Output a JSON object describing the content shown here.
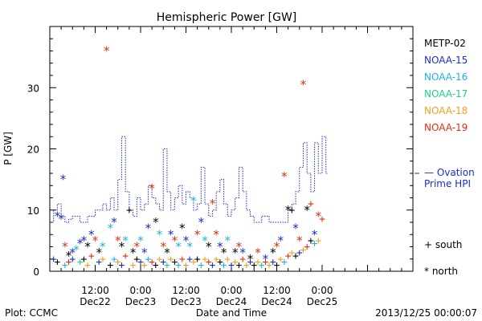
{
  "chart_data": {
    "type": "scatter",
    "title": "Hemispheric Power [GW]",
    "ylabel": "P [GW]",
    "xlabel": "Date and Time",
    "ylim": [
      0,
      40
    ],
    "yticks": [
      0,
      10,
      20,
      30
    ],
    "xlim": [
      0,
      96
    ],
    "xticks": [
      {
        "x": 12,
        "top": "12:00",
        "bottom": "Dec22"
      },
      {
        "x": 24,
        "top": "0:00",
        "bottom": "Dec23"
      },
      {
        "x": 36,
        "top": "12:00",
        "bottom": "Dec23"
      },
      {
        "x": 48,
        "top": "0:00",
        "bottom": "Dec24"
      },
      {
        "x": 60,
        "top": "12:00",
        "bottom": "Dec24"
      },
      {
        "x": 72,
        "top": "0:00",
        "bottom": "Dec25"
      }
    ],
    "legend": [
      {
        "name": "METP-02",
        "color": "#000000"
      },
      {
        "name": "NOAA-15",
        "color": "#1a2dc8"
      },
      {
        "name": "NOAA-16",
        "color": "#1fb4d8"
      },
      {
        "name": "NOAA-17",
        "color": "#20d080"
      },
      {
        "name": "NOAA-18",
        "color": "#f0a020"
      },
      {
        "name": "NOAA-19",
        "color": "#e03010"
      }
    ],
    "ovation": {
      "label_line1": "— Ovation",
      "label_line2": "Prime HPI",
      "color": "#1a2dc8",
      "steps": [
        [
          0,
          8
        ],
        [
          1,
          10
        ],
        [
          2,
          11
        ],
        [
          3,
          9
        ],
        [
          4,
          8
        ],
        [
          5,
          8.5
        ],
        [
          6,
          9
        ],
        [
          8,
          8
        ],
        [
          10,
          9
        ],
        [
          12,
          10
        ],
        [
          13,
          10
        ],
        [
          14,
          11
        ],
        [
          15,
          10
        ],
        [
          16,
          12
        ],
        [
          17,
          10
        ],
        [
          18,
          15
        ],
        [
          19,
          22
        ],
        [
          20,
          13
        ],
        [
          21,
          10
        ],
        [
          22,
          9
        ],
        [
          23,
          12
        ],
        [
          24,
          10
        ],
        [
          25,
          11
        ],
        [
          26,
          14
        ],
        [
          27,
          12
        ],
        [
          28,
          11
        ],
        [
          29,
          10
        ],
        [
          30,
          20
        ],
        [
          31,
          13
        ],
        [
          32,
          10
        ],
        [
          33,
          12
        ],
        [
          34,
          14
        ],
        [
          35,
          11
        ],
        [
          36,
          13
        ],
        [
          37,
          12
        ],
        [
          38,
          10
        ],
        [
          39,
          11
        ],
        [
          40,
          17
        ],
        [
          41,
          11
        ],
        [
          42,
          9
        ],
        [
          43,
          10
        ],
        [
          44,
          13
        ],
        [
          45,
          15
        ],
        [
          46,
          11
        ],
        [
          47,
          9
        ],
        [
          48,
          10
        ],
        [
          49,
          12
        ],
        [
          50,
          17
        ],
        [
          51,
          13
        ],
        [
          52,
          10
        ],
        [
          53,
          9
        ],
        [
          54,
          8
        ],
        [
          56,
          9
        ],
        [
          58,
          8
        ],
        [
          60,
          8
        ],
        [
          61,
          8
        ],
        [
          62,
          8
        ],
        [
          63,
          10
        ],
        [
          64,
          11
        ],
        [
          65,
          13
        ],
        [
          66,
          17
        ],
        [
          67,
          21
        ],
        [
          68,
          16
        ],
        [
          69,
          13
        ],
        [
          70,
          21
        ],
        [
          71,
          16
        ],
        [
          72,
          22
        ],
        [
          73,
          16
        ]
      ]
    },
    "markers": {
      "south_label": "+ south",
      "north_label": "* north"
    },
    "points": [
      {
        "x": 3.5,
        "y": 15,
        "c": 1,
        "s": "n"
      },
      {
        "x": 15,
        "y": 36,
        "c": 5,
        "s": "n"
      },
      {
        "x": 27,
        "y": 13.5,
        "c": 5,
        "s": "n"
      },
      {
        "x": 38,
        "y": 11.5,
        "c": 2,
        "s": "n"
      },
      {
        "x": 43,
        "y": 11,
        "c": 5,
        "s": "n"
      },
      {
        "x": 62,
        "y": 15.5,
        "c": 5,
        "s": "n"
      },
      {
        "x": 67,
        "y": 30.5,
        "c": 5,
        "s": "n"
      },
      {
        "x": 63,
        "y": 10,
        "c": 0,
        "s": "n"
      },
      {
        "x": 68,
        "y": 10,
        "c": 0,
        "s": "n"
      },
      {
        "x": 64,
        "y": 10,
        "c": 0,
        "s": "p"
      },
      {
        "x": 69,
        "y": 11,
        "c": 5,
        "s": "p"
      },
      {
        "x": 21,
        "y": 10,
        "c": 0,
        "s": "p"
      },
      {
        "x": 2,
        "y": 9,
        "c": 1,
        "s": "n"
      },
      {
        "x": 3,
        "y": 8.5,
        "c": 1,
        "s": "n"
      },
      {
        "x": 4,
        "y": 4,
        "c": 5,
        "s": "n"
      },
      {
        "x": 5,
        "y": 2.5,
        "c": 0,
        "s": "n"
      },
      {
        "x": 6,
        "y": 3,
        "c": 1,
        "s": "n"
      },
      {
        "x": 7,
        "y": 3.5,
        "c": 2,
        "s": "n"
      },
      {
        "x": 8,
        "y": 4.5,
        "c": 1,
        "s": "n"
      },
      {
        "x": 9,
        "y": 5,
        "c": 1,
        "s": "n"
      },
      {
        "x": 10,
        "y": 4,
        "c": 0,
        "s": "n"
      },
      {
        "x": 11,
        "y": 6,
        "c": 1,
        "s": "n"
      },
      {
        "x": 12,
        "y": 5,
        "c": 5,
        "s": "n"
      },
      {
        "x": 13,
        "y": 3,
        "c": 0,
        "s": "n"
      },
      {
        "x": 14,
        "y": 4,
        "c": 2,
        "s": "n"
      },
      {
        "x": 16,
        "y": 7,
        "c": 2,
        "s": "n"
      },
      {
        "x": 17,
        "y": 8,
        "c": 1,
        "s": "n"
      },
      {
        "x": 18,
        "y": 5,
        "c": 5,
        "s": "n"
      },
      {
        "x": 19,
        "y": 4,
        "c": 0,
        "s": "n"
      },
      {
        "x": 20,
        "y": 5,
        "c": 2,
        "s": "n"
      },
      {
        "x": 22,
        "y": 3,
        "c": 0,
        "s": "n"
      },
      {
        "x": 23,
        "y": 4,
        "c": 5,
        "s": "n"
      },
      {
        "x": 24,
        "y": 5,
        "c": 2,
        "s": "n"
      },
      {
        "x": 25,
        "y": 3,
        "c": 1,
        "s": "n"
      },
      {
        "x": 26,
        "y": 7,
        "c": 1,
        "s": "n"
      },
      {
        "x": 28,
        "y": 8,
        "c": 0,
        "s": "n"
      },
      {
        "x": 29,
        "y": 6,
        "c": 2,
        "s": "n"
      },
      {
        "x": 30,
        "y": 4,
        "c": 5,
        "s": "n"
      },
      {
        "x": 31,
        "y": 3,
        "c": 0,
        "s": "n"
      },
      {
        "x": 32,
        "y": 6,
        "c": 1,
        "s": "n"
      },
      {
        "x": 33,
        "y": 5,
        "c": 5,
        "s": "n"
      },
      {
        "x": 34,
        "y": 4,
        "c": 2,
        "s": "n"
      },
      {
        "x": 35,
        "y": 7,
        "c": 0,
        "s": "n"
      },
      {
        "x": 36,
        "y": 5,
        "c": 1,
        "s": "n"
      },
      {
        "x": 37,
        "y": 4,
        "c": 2,
        "s": "n"
      },
      {
        "x": 39,
        "y": 6,
        "c": 5,
        "s": "n"
      },
      {
        "x": 40,
        "y": 8,
        "c": 1,
        "s": "n"
      },
      {
        "x": 41,
        "y": 5,
        "c": 2,
        "s": "n"
      },
      {
        "x": 42,
        "y": 4,
        "c": 0,
        "s": "n"
      },
      {
        "x": 44,
        "y": 6,
        "c": 5,
        "s": "n"
      },
      {
        "x": 45,
        "y": 4,
        "c": 1,
        "s": "n"
      },
      {
        "x": 46,
        "y": 3,
        "c": 0,
        "s": "n"
      },
      {
        "x": 47,
        "y": 5,
        "c": 2,
        "s": "n"
      },
      {
        "x": 49,
        "y": 3,
        "c": 0,
        "s": "n"
      },
      {
        "x": 50,
        "y": 4,
        "c": 5,
        "s": "n"
      },
      {
        "x": 51,
        "y": 3,
        "c": 1,
        "s": "n"
      },
      {
        "x": 53,
        "y": 2,
        "c": 0,
        "s": "n"
      },
      {
        "x": 55,
        "y": 3,
        "c": 5,
        "s": "n"
      },
      {
        "x": 57,
        "y": 2,
        "c": 1,
        "s": "n"
      },
      {
        "x": 59,
        "y": 3,
        "c": 0,
        "s": "n"
      },
      {
        "x": 60,
        "y": 4,
        "c": 5,
        "s": "n"
      },
      {
        "x": 61,
        "y": 5,
        "c": 1,
        "s": "n"
      },
      {
        "x": 65,
        "y": 7,
        "c": 1,
        "s": "n"
      },
      {
        "x": 66,
        "y": 5,
        "c": 5,
        "s": "n"
      },
      {
        "x": 70,
        "y": 6,
        "c": 1,
        "s": "n"
      },
      {
        "x": 71,
        "y": 9,
        "c": 5,
        "s": "n"
      },
      {
        "x": 1,
        "y": 2,
        "c": 1,
        "s": "p"
      },
      {
        "x": 2,
        "y": 1.5,
        "c": 0,
        "s": "p"
      },
      {
        "x": 4,
        "y": 1,
        "c": 2,
        "s": "p"
      },
      {
        "x": 5,
        "y": 1.5,
        "c": 5,
        "s": "p"
      },
      {
        "x": 6,
        "y": 2,
        "c": 1,
        "s": "p"
      },
      {
        "x": 8,
        "y": 1.5,
        "c": 3,
        "s": "p"
      },
      {
        "x": 9,
        "y": 2,
        "c": 0,
        "s": "p"
      },
      {
        "x": 10,
        "y": 1,
        "c": 4,
        "s": "p"
      },
      {
        "x": 11,
        "y": 2.5,
        "c": 5,
        "s": "p"
      },
      {
        "x": 13,
        "y": 1.5,
        "c": 1,
        "s": "p"
      },
      {
        "x": 14,
        "y": 2,
        "c": 4,
        "s": "p"
      },
      {
        "x": 16,
        "y": 1,
        "c": 0,
        "s": "p"
      },
      {
        "x": 17,
        "y": 2,
        "c": 2,
        "s": "p"
      },
      {
        "x": 18,
        "y": 1.5,
        "c": 4,
        "s": "p"
      },
      {
        "x": 19,
        "y": 1,
        "c": 1,
        "s": "p"
      },
      {
        "x": 20,
        "y": 2.5,
        "c": 5,
        "s": "p"
      },
      {
        "x": 22,
        "y": 1,
        "c": 4,
        "s": "p"
      },
      {
        "x": 23,
        "y": 2,
        "c": 0,
        "s": "p"
      },
      {
        "x": 24,
        "y": 1.5,
        "c": 1,
        "s": "p"
      },
      {
        "x": 25,
        "y": 1,
        "c": 4,
        "s": "p"
      },
      {
        "x": 26,
        "y": 2,
        "c": 2,
        "s": "p"
      },
      {
        "x": 27,
        "y": 1.5,
        "c": 5,
        "s": "p"
      },
      {
        "x": 28,
        "y": 1,
        "c": 0,
        "s": "p"
      },
      {
        "x": 29,
        "y": 2,
        "c": 4,
        "s": "p"
      },
      {
        "x": 30,
        "y": 1.5,
        "c": 1,
        "s": "p"
      },
      {
        "x": 31,
        "y": 1,
        "c": 3,
        "s": "p"
      },
      {
        "x": 32,
        "y": 2,
        "c": 4,
        "s": "p"
      },
      {
        "x": 33,
        "y": 1.5,
        "c": 0,
        "s": "p"
      },
      {
        "x": 34,
        "y": 1,
        "c": 2,
        "s": "p"
      },
      {
        "x": 35,
        "y": 2,
        "c": 5,
        "s": "p"
      },
      {
        "x": 36,
        "y": 1,
        "c": 4,
        "s": "p"
      },
      {
        "x": 37,
        "y": 2,
        "c": 1,
        "s": "p"
      },
      {
        "x": 38,
        "y": 1.5,
        "c": 4,
        "s": "p"
      },
      {
        "x": 39,
        "y": 2,
        "c": 0,
        "s": "p"
      },
      {
        "x": 40,
        "y": 1,
        "c": 2,
        "s": "p"
      },
      {
        "x": 41,
        "y": 2,
        "c": 4,
        "s": "p"
      },
      {
        "x": 42,
        "y": 1.5,
        "c": 5,
        "s": "p"
      },
      {
        "x": 43,
        "y": 1,
        "c": 1,
        "s": "p"
      },
      {
        "x": 44,
        "y": 2,
        "c": 4,
        "s": "p"
      },
      {
        "x": 45,
        "y": 1.5,
        "c": 0,
        "s": "p"
      },
      {
        "x": 46,
        "y": 1,
        "c": 2,
        "s": "p"
      },
      {
        "x": 47,
        "y": 2,
        "c": 4,
        "s": "p"
      },
      {
        "x": 48,
        "y": 1,
        "c": 1,
        "s": "p"
      },
      {
        "x": 49,
        "y": 1.5,
        "c": 4,
        "s": "p"
      },
      {
        "x": 50,
        "y": 1,
        "c": 0,
        "s": "p"
      },
      {
        "x": 51,
        "y": 2,
        "c": 5,
        "s": "p"
      },
      {
        "x": 52,
        "y": 1,
        "c": 4,
        "s": "p"
      },
      {
        "x": 53,
        "y": 1.5,
        "c": 1,
        "s": "p"
      },
      {
        "x": 54,
        "y": 1,
        "c": 0,
        "s": "p"
      },
      {
        "x": 55,
        "y": 1.5,
        "c": 4,
        "s": "p"
      },
      {
        "x": 56,
        "y": 1,
        "c": 2,
        "s": "p"
      },
      {
        "x": 57,
        "y": 1.5,
        "c": 5,
        "s": "p"
      },
      {
        "x": 58,
        "y": 1,
        "c": 4,
        "s": "p"
      },
      {
        "x": 59,
        "y": 1.5,
        "c": 1,
        "s": "p"
      },
      {
        "x": 60,
        "y": 1,
        "c": 0,
        "s": "p"
      },
      {
        "x": 61,
        "y": 2,
        "c": 4,
        "s": "p"
      },
      {
        "x": 62,
        "y": 1.5,
        "c": 2,
        "s": "p"
      },
      {
        "x": 63,
        "y": 2.5,
        "c": 5,
        "s": "p"
      },
      {
        "x": 64,
        "y": 3,
        "c": 4,
        "s": "p"
      },
      {
        "x": 65,
        "y": 2.5,
        "c": 0,
        "s": "p"
      },
      {
        "x": 66,
        "y": 3,
        "c": 1,
        "s": "p"
      },
      {
        "x": 67,
        "y": 3.5,
        "c": 4,
        "s": "p"
      },
      {
        "x": 68,
        "y": 4,
        "c": 5,
        "s": "p"
      },
      {
        "x": 69,
        "y": 5,
        "c": 0,
        "s": "p"
      },
      {
        "x": 70,
        "y": 4.5,
        "c": 2,
        "s": "p"
      },
      {
        "x": 71,
        "y": 5,
        "c": 4,
        "s": "p"
      },
      {
        "x": 72,
        "y": 8.5,
        "c": 5,
        "s": "p"
      }
    ]
  },
  "footer": {
    "plot_label": "Plot: CCMC",
    "timestamp": "2013/12/25 00:00:07"
  }
}
